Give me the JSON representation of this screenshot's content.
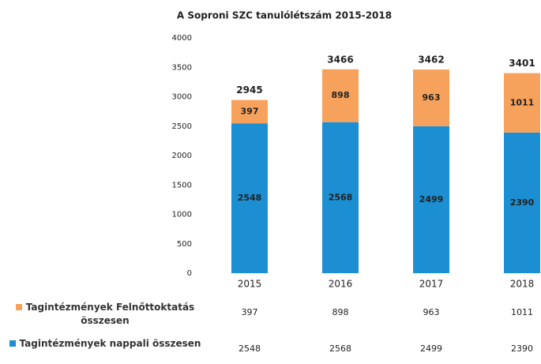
{
  "chart_data": {
    "type": "stacked_bar",
    "title": "A Soproni SZC tanulólétszám 2015-2018",
    "categories": [
      "2015",
      "2016",
      "2017",
      "2018"
    ],
    "series": [
      {
        "name": "Tagintézmények nappali összesen",
        "color": "#1b8fd2",
        "values": [
          2548,
          2568,
          2499,
          2390
        ]
      },
      {
        "name": "Tagintézmények Felnőttoktatás összesen",
        "color": "#f7a25c",
        "values": [
          397,
          898,
          963,
          1011
        ]
      }
    ],
    "totals": [
      2945,
      3466,
      3462,
      3401
    ],
    "ylim": [
      0,
      4000
    ],
    "yticks": [
      0,
      500,
      1000,
      1500,
      2000,
      2500,
      3000,
      3500,
      4000
    ],
    "grid": false
  }
}
